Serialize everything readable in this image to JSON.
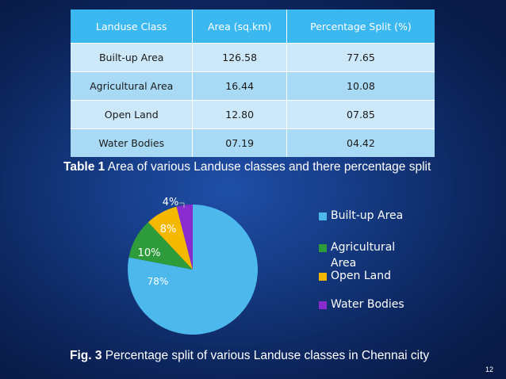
{
  "table": {
    "headers": [
      "Landuse Class",
      "Area (sq.km)",
      "Percentage Split (%)"
    ],
    "rows": [
      [
        "Built-up Area",
        "126.58",
        "77.65"
      ],
      [
        "Agricultural Area",
        "16.44",
        "10.08"
      ],
      [
        "Open Land",
        "12.80",
        "07.85"
      ],
      [
        "Water Bodies",
        "07.19",
        "04.42"
      ]
    ]
  },
  "captions": {
    "table_label": "Table 1",
    "table_text": " Area of various Landuse classes and there percentage split",
    "fig_label": "Fig. 3",
    "fig_text": " Percentage split of various Landuse classes in Chennai city"
  },
  "chart_data": {
    "type": "pie",
    "categories": [
      "Built-up Area",
      "Agricultural Area",
      "Open Land",
      "Water Bodies"
    ],
    "values": [
      78,
      10,
      8,
      4
    ],
    "data_labels": [
      "78%",
      "10%",
      "8%",
      "4%"
    ],
    "colors": [
      "#4db8ec",
      "#2e9c3a",
      "#f5b800",
      "#8a2bd0"
    ],
    "legend": [
      "Built-up Area",
      "Agricultural Area",
      "Open Land",
      "Water Bodies"
    ],
    "legend_position": "right"
  },
  "page_number": "12"
}
